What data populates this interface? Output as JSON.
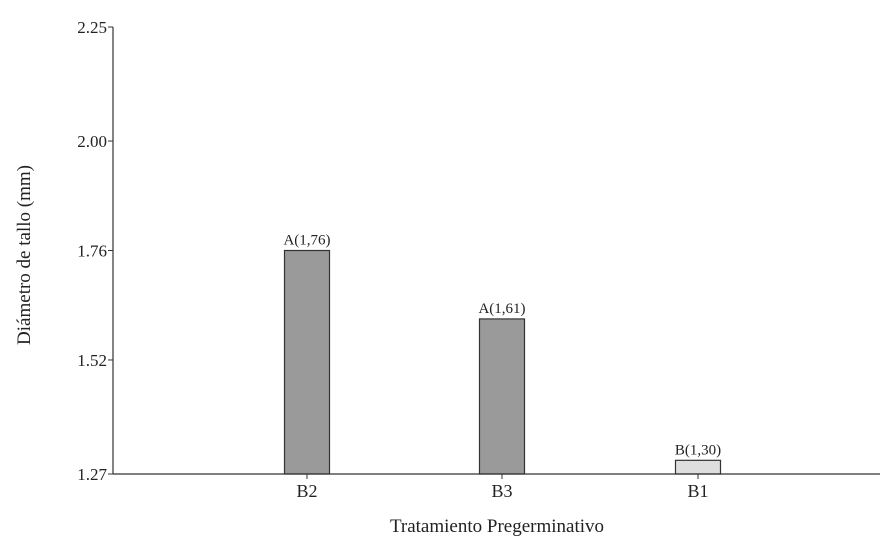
{
  "chart_data": {
    "type": "bar",
    "title": "",
    "xlabel": "Tratamiento Pregerminativo",
    "ylabel": "Diámetro de tallo (mm)",
    "ylim": [
      1.27,
      2.25
    ],
    "yticks": [
      1.27,
      1.52,
      1.76,
      2.0,
      2.25
    ],
    "ytick_labels": [
      "1.27",
      "1.52",
      "1.76",
      "2.00",
      "2.25"
    ],
    "categories": [
      "B2",
      "B3",
      "B1"
    ],
    "values": [
      1.76,
      1.61,
      1.3
    ],
    "bar_labels": [
      "A(1,76)",
      "A(1,61)",
      "B(1,30)"
    ],
    "bar_colors": [
      "#9a9a9a",
      "#9a9a9a",
      "#dedede"
    ],
    "grid": false,
    "legend": "none"
  }
}
